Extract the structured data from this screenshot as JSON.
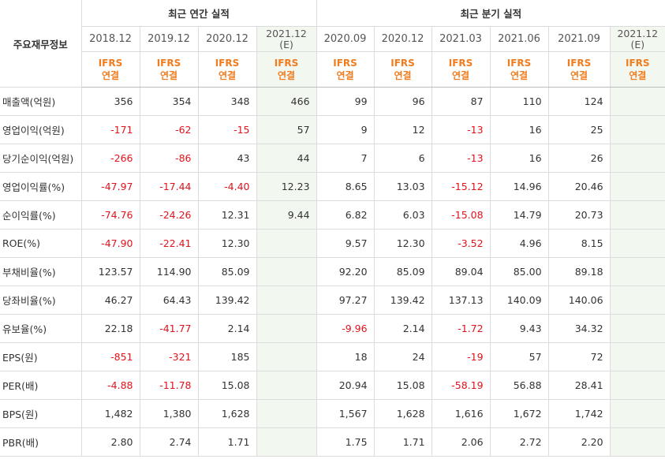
{
  "header": {
    "row_label_title": "주요재무정보",
    "annual_title": "최근 연간 실적",
    "quarterly_title": "최근 분기 실적",
    "annual_periods": [
      "2018.12",
      "2019.12",
      "2020.12",
      "2021.12"
    ],
    "annual_estimate_suffix": "(E)",
    "quarter_periods": [
      "2020.09",
      "2020.12",
      "2021.03",
      "2021.06",
      "2021.09",
      "2021.12"
    ],
    "quarter_estimate_suffix": "(E)",
    "basis_line1": "IFRS",
    "basis_line2": "연결"
  },
  "rows": [
    {
      "label": "매출액(억원)",
      "values": [
        "356",
        "354",
        "348",
        "466",
        "99",
        "96",
        "87",
        "110",
        "124",
        ""
      ]
    },
    {
      "label": "영업이익(억원)",
      "values": [
        "-171",
        "-62",
        "-15",
        "57",
        "9",
        "12",
        "-13",
        "16",
        "25",
        ""
      ]
    },
    {
      "label": "당기순이익(억원)",
      "values": [
        "-266",
        "-86",
        "43",
        "44",
        "7",
        "6",
        "-13",
        "16",
        "26",
        ""
      ]
    },
    {
      "label": "영업이익률(%)",
      "values": [
        "-47.97",
        "-17.44",
        "-4.40",
        "12.23",
        "8.65",
        "13.03",
        "-15.12",
        "14.96",
        "20.46",
        ""
      ]
    },
    {
      "label": "순이익률(%)",
      "values": [
        "-74.76",
        "-24.26",
        "12.31",
        "9.44",
        "6.82",
        "6.03",
        "-15.08",
        "14.79",
        "20.73",
        ""
      ]
    },
    {
      "label": "ROE(%)",
      "values": [
        "-47.90",
        "-22.41",
        "12.30",
        "",
        "9.57",
        "12.30",
        "-3.52",
        "4.96",
        "8.15",
        ""
      ]
    },
    {
      "label": "부채비율(%)",
      "values": [
        "123.57",
        "114.90",
        "85.09",
        "",
        "92.20",
        "85.09",
        "89.04",
        "85.00",
        "89.18",
        ""
      ]
    },
    {
      "label": "당좌비율(%)",
      "values": [
        "46.27",
        "64.43",
        "139.42",
        "",
        "97.27",
        "139.42",
        "137.13",
        "140.09",
        "140.06",
        ""
      ]
    },
    {
      "label": "유보율(%)",
      "values": [
        "22.18",
        "-41.77",
        "2.14",
        "",
        "-9.96",
        "2.14",
        "-1.72",
        "9.43",
        "34.32",
        ""
      ]
    },
    {
      "label": "EPS(원)",
      "values": [
        "-851",
        "-321",
        "185",
        "",
        "18",
        "24",
        "-19",
        "57",
        "72",
        ""
      ]
    },
    {
      "label": "PER(배)",
      "values": [
        "-4.88",
        "-11.78",
        "15.08",
        "",
        "20.94",
        "15.08",
        "-58.19",
        "56.88",
        "28.41",
        ""
      ]
    },
    {
      "label": "BPS(원)",
      "values": [
        "1,482",
        "1,380",
        "1,628",
        "",
        "1,567",
        "1,628",
        "1,616",
        "1,672",
        "1,742",
        ""
      ]
    },
    {
      "label": "PBR(배)",
      "values": [
        "2.80",
        "2.74",
        "1.71",
        "",
        "1.75",
        "1.71",
        "2.06",
        "2.72",
        "2.20",
        ""
      ]
    }
  ],
  "colors": {
    "negative": "#e1121c",
    "basis": "#f07c1e",
    "estimate_bg": "#f2f7f0",
    "border": "#dcdcdc"
  }
}
